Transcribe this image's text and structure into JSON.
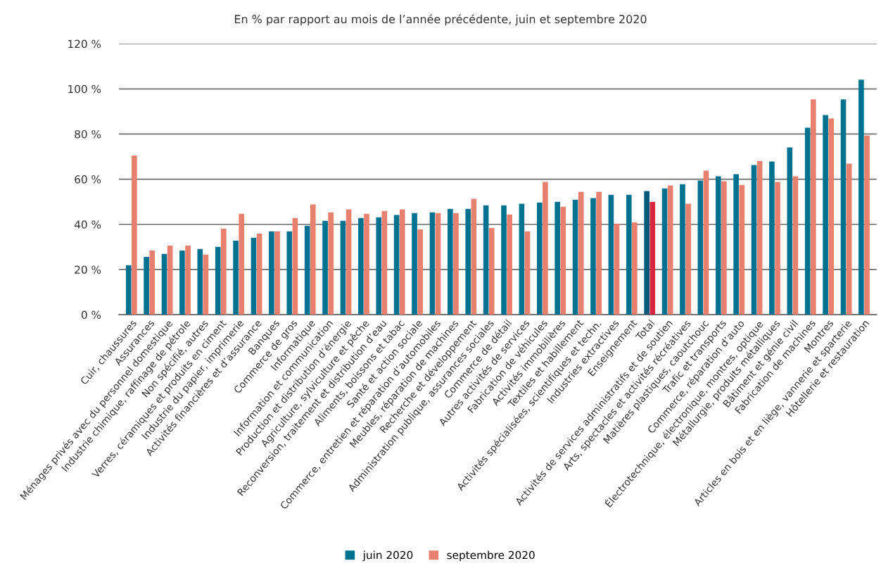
{
  "chart_data": {
    "type": "bar",
    "title": "En % par rapport au mois de l’année précédente, juin et septembre 2020",
    "categories": [
      "Cuir, chaussures",
      "Assurances",
      "Ménages privés avec du personnel domestique",
      "Industrie chimique, raffinage de pétrole",
      "Non spécifié, autres",
      "Verres, céramiques et produits en ciment",
      "Industrie du papier, imprimerie",
      "Activités financières et d’assurance",
      "Banques",
      "Commerce de gros",
      "Informatique",
      "Information et communication",
      "Production et distribution d’énergie",
      "Agriculture, sylviculture et pêche",
      "Reconversion, traitement et distribution d’eau",
      "Aliments, boissons et tabac",
      "Santé et action sociale",
      "Commerce, entretien et réparation d’automobiles",
      "Meubles, réparation de machines",
      "Recherche et développement",
      "Administration publique, assurances sociales",
      "Commerce de détail",
      "Autres activités de services",
      "Fabrication de véhicules",
      "Activités immobilières",
      "Textiles et habillement",
      "Activités spécialisées, scientifiques et techn.",
      "Industries extractives",
      "Enseignement",
      "Total",
      "Activités de services administratifs et de soutien",
      "Arts, spectacles et activités récréatives",
      "Matières plastiques, caoutchouc",
      "Trafic et transports",
      "Commerce, réparation d’auto",
      "Électrotechnique, électronique, montres, optique",
      "Métallurgie, produits métalliques",
      "Bâtiment et génie civil",
      "Fabrication de machines",
      "Montres",
      "Articles en bois et en liège, vannerie et sparterie",
      "Hôtellerie et restauration"
    ],
    "series": [
      {
        "name": "juin 2020",
        "color": "#00718f",
        "values": [
          21.9,
          25.6,
          26.9,
          28.4,
          29.1,
          30.0,
          32.8,
          34.1,
          36.9,
          36.9,
          39.4,
          41.6,
          41.6,
          42.8,
          43.1,
          44.1,
          45.0,
          45.3,
          46.9,
          46.9,
          48.4,
          48.4,
          49.1,
          49.7,
          50.0,
          50.9,
          51.6,
          53.1,
          53.1,
          54.7,
          55.9,
          57.8,
          59.4,
          61.3,
          62.2,
          66.3,
          67.8,
          74.1,
          82.8,
          88.4,
          95.3,
          104.1
        ],
        "colors": [
          "#00718f",
          "#00718f",
          "#00718f",
          "#00718f",
          "#00718f",
          "#00718f",
          "#00718f",
          "#00718f",
          "#00718f",
          "#00718f",
          "#00718f",
          "#00718f",
          "#00718f",
          "#00718f",
          "#00718f",
          "#00718f",
          "#00718f",
          "#00718f",
          "#00718f",
          "#00718f",
          "#00718f",
          "#00718f",
          "#00718f",
          "#00718f",
          "#00718f",
          "#00718f",
          "#00718f",
          "#00718f",
          "#00718f",
          "#005a7c",
          "#00718f",
          "#00718f",
          "#00718f",
          "#00718f",
          "#00718f",
          "#00718f",
          "#00718f",
          "#00718f",
          "#00718f",
          "#00718f",
          "#00718f",
          "#00718f"
        ]
      },
      {
        "name": "septembre 2020",
        "color": "#e8806f",
        "values": [
          70.5,
          28.4,
          30.6,
          30.6,
          26.6,
          38.1,
          44.7,
          35.9,
          36.9,
          42.8,
          48.8,
          45.3,
          46.6,
          44.7,
          45.9,
          46.6,
          37.8,
          45.0,
          45.0,
          51.3,
          38.4,
          44.4,
          36.9,
          58.8,
          47.8,
          54.4,
          54.4,
          40.3,
          40.9,
          50.0,
          57.2,
          49.1,
          63.8,
          59.1,
          57.5,
          68.1,
          58.8,
          61.3,
          95.3,
          86.9,
          66.9,
          79.4
        ],
        "colors": [
          "#e8806f",
          "#e8806f",
          "#e8806f",
          "#e8806f",
          "#e8806f",
          "#e8806f",
          "#e8806f",
          "#e8806f",
          "#e8806f",
          "#e8806f",
          "#e8806f",
          "#e8806f",
          "#e8806f",
          "#e8806f",
          "#e8806f",
          "#e8806f",
          "#e8806f",
          "#e8806f",
          "#e8806f",
          "#e8806f",
          "#e8806f",
          "#e8806f",
          "#e8806f",
          "#e8806f",
          "#e8806f",
          "#e8806f",
          "#e8806f",
          "#e8806f",
          "#e8806f",
          "#d7263d",
          "#e8806f",
          "#e8806f",
          "#e8806f",
          "#e8806f",
          "#e8806f",
          "#e8806f",
          "#e8806f",
          "#e8806f",
          "#e8806f",
          "#e8806f",
          "#e8806f",
          "#e8806f"
        ]
      }
    ],
    "ylim": [
      0,
      120
    ],
    "yticks": [
      {
        "value": 0,
        "label": "0 %"
      },
      {
        "value": 20,
        "label": "20 %"
      },
      {
        "value": 40,
        "label": "40 %"
      },
      {
        "value": 60,
        "label": "60 %"
      },
      {
        "value": 80,
        "label": "80 %"
      },
      {
        "value": 100,
        "label": "100 %"
      },
      {
        "value": 120,
        "label": "120 %"
      }
    ],
    "grid": "y",
    "legend": "bottom"
  }
}
